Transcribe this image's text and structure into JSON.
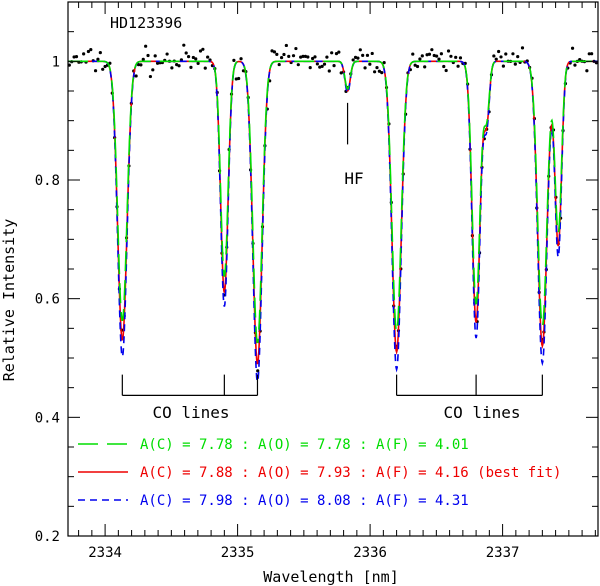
{
  "chart_data": {
    "type": "line",
    "title": "HD123396",
    "xlabel": "Wavelength [nm]",
    "ylabel": "Relative Intensity",
    "xlim": [
      2333.72,
      2337.72
    ],
    "ylim": [
      0.2,
      1.1
    ],
    "x_ticks": [
      2334,
      2335,
      2336,
      2337
    ],
    "x_tick_labels": [
      "2334",
      "2335",
      "2336",
      "2337"
    ],
    "y_ticks": [
      0.2,
      0.4,
      0.6,
      0.8,
      1.0
    ],
    "y_tick_labels": [
      "0.2",
      "0.4",
      "0.6",
      "0.8",
      "1"
    ],
    "annotations": {
      "hf": {
        "label": "HF",
        "x": 2335.83
      },
      "co_left": {
        "label": "CO lines",
        "positions": [
          2334.13,
          2334.9,
          2335.15
        ]
      },
      "co_right": {
        "label": "CO lines",
        "positions": [
          2336.2,
          2336.8,
          2337.3
        ]
      }
    },
    "absorption_lines": [
      {
        "x": 2334.13,
        "depth": 0.47,
        "width": 0.035
      },
      {
        "x": 2334.9,
        "depth": 0.39,
        "width": 0.028
      },
      {
        "x": 2335.15,
        "depth": 0.51,
        "width": 0.035
      },
      {
        "x": 2335.83,
        "depth": 0.05,
        "width": 0.02
      },
      {
        "x": 2336.2,
        "depth": 0.49,
        "width": 0.035
      },
      {
        "x": 2336.8,
        "depth": 0.44,
        "width": 0.03
      },
      {
        "x": 2336.88,
        "depth": 0.1,
        "width": 0.02
      },
      {
        "x": 2337.3,
        "depth": 0.48,
        "width": 0.035
      },
      {
        "x": 2337.42,
        "depth": 0.31,
        "width": 0.025
      }
    ],
    "series": [
      {
        "name": "A(C) = 7.78 : A(O) = 7.78 : A(F) = 4.01",
        "color": "#00dd00",
        "dash": "long-dash",
        "depth_scale": 0.93
      },
      {
        "name": "A(C) = 7.88 : A(O) = 7.93 : A(F) = 4.16 (best fit)",
        "color": "#ee0000",
        "dash": "solid",
        "depth_scale": 1.0
      },
      {
        "name": "A(C) = 7.98 : A(O) = 8.08 : A(F) = 4.31",
        "color": "#0000ee",
        "dash": "short-dash",
        "depth_scale": 1.06
      }
    ],
    "observed": {
      "name": "observed spectrum",
      "color": "#000000"
    }
  }
}
